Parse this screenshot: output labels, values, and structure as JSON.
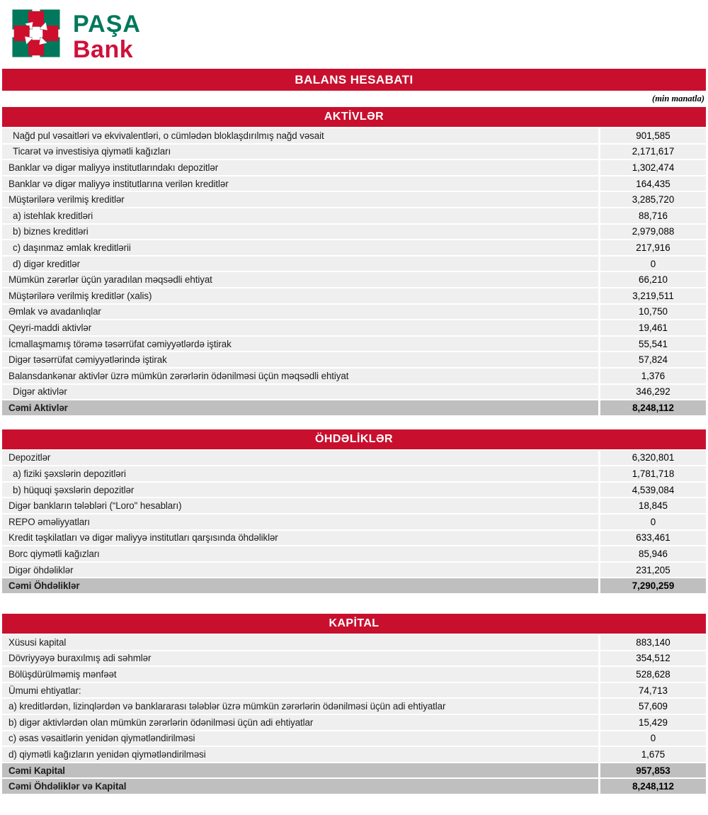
{
  "logo": {
    "brand_top": "PAŞA",
    "brand_bottom": "Bank"
  },
  "colors": {
    "brand_red": "#C8102E",
    "brand_green": "#00785B",
    "row_background": "#EFEFEF",
    "total_background": "#BFBFBF"
  },
  "title": "BALANS HESABATI",
  "unit_note": "(min manatla)",
  "sections": [
    {
      "header": "AKTİVLƏR",
      "rows": [
        {
          "label": "Nağd pul vəsaitləri və ekvivalentləri, o cümlədən bloklaşdırılmış nağd vəsait",
          "value": "901,585",
          "indent": true
        },
        {
          "label": "Ticarət və investisiya qiymətli kağızları",
          "value": "2,171,617",
          "indent": true
        },
        {
          "label": "Banklar və digər maliyyə institutlarındakı depozitlər",
          "value": "1,302,474"
        },
        {
          "label": "Banklar və digər maliyyə institutlarına verilən kreditlər",
          "value": "164,435"
        },
        {
          "label": "Müştərilərə verilmiş kreditlər",
          "value": "3,285,720"
        },
        {
          "label": "a) istehlak kreditləri",
          "value": "88,716",
          "indent": true
        },
        {
          "label": "b) biznes kreditləri",
          "value": "2,979,088",
          "indent": true
        },
        {
          "label": "c) daşınmaz əmlak kreditlərii",
          "value": "217,916",
          "indent": true
        },
        {
          "label": "d) digər kreditlər",
          "value": "0",
          "indent": true
        },
        {
          "label": "Mümkün zərərlər üçün yaradılan məqsədli ehtiyat",
          "value": "66,210"
        },
        {
          "label": "Müştərilərə verilmiş kreditlər (xalis)",
          "value": "3,219,511"
        },
        {
          "label": "Əmlak və avadanlıqlar",
          "value": "10,750"
        },
        {
          "label": "Qeyri-maddi aktivlər",
          "value": "19,461"
        },
        {
          "label": "İcmallaşmamış törəmə təsərrüfat cəmiyyətlərdə iştirak",
          "value": "55,541"
        },
        {
          "label": "Digər təsərrüfat cəmiyyətlərində iştirak",
          "value": "57,824"
        },
        {
          "label": "Balansdankənar aktivlər üzrə mümkün zərərlərin ödənilməsi üçün məqsədli ehtiyat",
          "value": "1,376"
        },
        {
          "label": "Digər aktivlər",
          "value": "346,292",
          "indent": true
        },
        {
          "label": "Cəmi Aktivlər",
          "value": "8,248,112",
          "total": true
        }
      ]
    },
    {
      "header": "ÖHDƏLİKLƏR",
      "rows": [
        {
          "label": "Depozitlər",
          "value": "6,320,801"
        },
        {
          "label": "a) fiziki şəxslərin depozitləri",
          "value": "1,781,718",
          "indent": true
        },
        {
          "label": "b) hüquqi şəxslərin depozitlər",
          "value": "4,539,084",
          "indent": true
        },
        {
          "label": "Digər bankların tələbləri (“Loro\" hesabları)",
          "value": "18,845"
        },
        {
          "label": "REPO əməliyyatları",
          "value": "0"
        },
        {
          "label": "Kredit təşkilatları və digər maliyyə institutları qarşısında öhdəliklər",
          "value": "633,461"
        },
        {
          "label": "Borc qiymətli kağızları",
          "value": "85,946"
        },
        {
          "label": "Digər öhdəliklər",
          "value": "231,205"
        },
        {
          "label": "Cəmi Öhdəliklər",
          "value": "7,290,259",
          "total": true
        }
      ]
    },
    {
      "header": "KAPİTAL",
      "rows": [
        {
          "label": "Xüsusi kapital",
          "value": "883,140"
        },
        {
          "label": "Dövriyyəyə buraxılmış adi səhmlər",
          "value": "354,512"
        },
        {
          "label": "Bölüşdürülməmiş mənfəət",
          "value": "528,628"
        },
        {
          "label": "Ümumi ehtiyatlar:",
          "value": "74,713"
        },
        {
          "label": "a) kreditlərdən, lizinqlərdən və banklararası  tələblər üzrə mümkün zərərlərin ödənilməsi üçün adi ehtiyatlar",
          "value": "57,609"
        },
        {
          "label": "b) digər aktivlərdən olan mümkün zərərlərin ödənilməsi üçün adi ehtiyatlar",
          "value": "15,429"
        },
        {
          "label": "c) əsas vəsaitlərin yenidən qiymətləndirilməsi",
          "value": "0"
        },
        {
          "label": "d) qiymətli kağızların yenidən qiymətləndirilməsi",
          "value": "1,675"
        },
        {
          "label": "Cəmi Kapital",
          "value": "957,853",
          "total": true
        },
        {
          "label": "Cəmi Öhdəliklər və Kapital",
          "value": "8,248,112",
          "total": true
        }
      ]
    }
  ]
}
